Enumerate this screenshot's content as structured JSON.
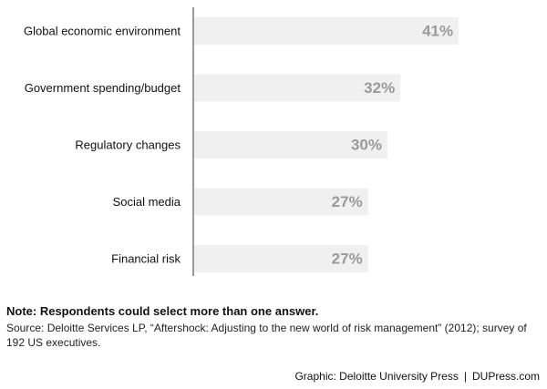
{
  "chart_data": {
    "type": "bar",
    "orientation": "horizontal",
    "categories": [
      "Global economic environment",
      "Government spending/budget",
      "Regulatory changes",
      "Social media",
      "Financial risk"
    ],
    "values": [
      41,
      32,
      30,
      27,
      27
    ],
    "value_suffix": "%",
    "title": "",
    "xlabel": "",
    "ylabel": "",
    "xlim": [
      0,
      50
    ],
    "grid": false,
    "legend": "none",
    "colors": {
      "bar": "#f0f0f0",
      "value_text": "#9a9a9a",
      "axis": "#9a9a9a"
    }
  },
  "footer": {
    "note": "Note: Respondents could select more than one answer.",
    "source": "Source: Deloitte Services LP, “Aftershock: Adjusting to the new world of risk management” (2012); survey of 192 US executives.",
    "credit_left": "Graphic: Deloitte University Press",
    "credit_separator": "|",
    "credit_right": "DUPress.com"
  }
}
